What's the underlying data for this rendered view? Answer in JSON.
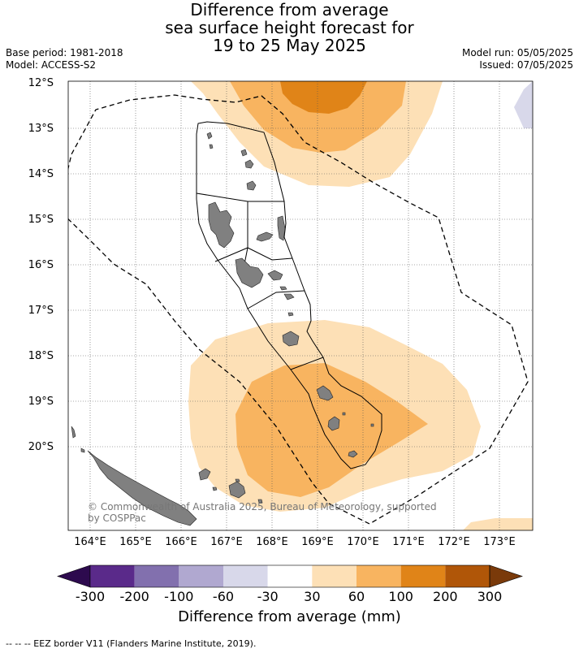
{
  "title": {
    "line1": "Difference from average",
    "line2": "sea surface height forecast for",
    "line3": "19 to 25 May 2025"
  },
  "meta_left": {
    "base_period": "Base period: 1981-2018",
    "model": "Model: ACCESS-S2"
  },
  "meta_right": {
    "model_run": "Model run: 05/05/2025",
    "issued": "Issued: 07/05/2025"
  },
  "map": {
    "lat_labels": [
      "12°S",
      "13°S",
      "14°S",
      "15°S",
      "16°S",
      "17°S",
      "18°S",
      "19°S",
      "20°S"
    ],
    "lon_labels": [
      "164°E",
      "165°E",
      "166°E",
      "167°E",
      "168°E",
      "169°E",
      "170°E",
      "171°E",
      "172°E",
      "173°E"
    ],
    "copyright_line1": "© Commonwealth of Australia 2025, Bureau of Meteorology, supported",
    "copyright_line2": "by COSPPac",
    "land_color": "#808080",
    "eez_style": "dashed"
  },
  "colorbar": {
    "ticks": [
      "-300",
      "-200",
      "-100",
      "-60",
      "-30",
      "30",
      "60",
      "100",
      "200",
      "300"
    ],
    "colors": [
      "#2d0a4e",
      "#5a2a8a",
      "#8270ae",
      "#b0a8d0",
      "#d8d8ea",
      "#ffffff",
      "#fde0b6",
      "#f8b460",
      "#e08418",
      "#b05608",
      "#7a3a0a"
    ],
    "title": "Difference from average (mm)"
  },
  "legend_note": "-- -- -- EEZ border V11 (Flanders Marine Institute, 2019)."
}
